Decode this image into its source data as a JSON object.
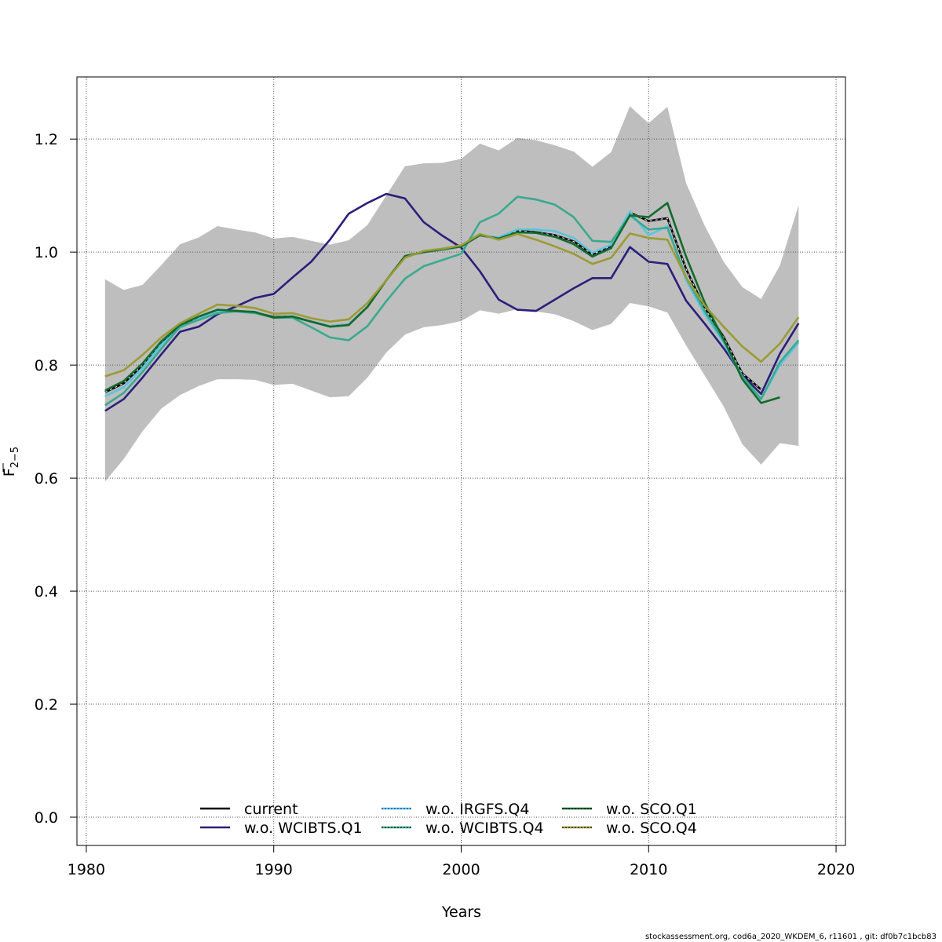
{
  "chart_data": {
    "type": "line",
    "xlabel": "Years",
    "ylabel": "F",
    "ylabel_subscript": "2−5",
    "xlim": [
      1979.5,
      2020.5
    ],
    "ylim": [
      -0.05,
      1.31
    ],
    "xticks": [
      1980,
      1990,
      2000,
      2010,
      2020
    ],
    "yticks": [
      0.0,
      0.2,
      0.4,
      0.6,
      0.8,
      1.0,
      1.2
    ],
    "grid": true,
    "legend_position": "bottom-center",
    "x": [
      1981,
      1982,
      1983,
      1984,
      1985,
      1986,
      1987,
      1988,
      1989,
      1990,
      1991,
      1992,
      1993,
      1994,
      1995,
      1996,
      1997,
      1998,
      1999,
      2000,
      2001,
      2002,
      2003,
      2004,
      2005,
      2006,
      2007,
      2008,
      2009,
      2010,
      2011,
      2012,
      2013,
      2014,
      2015,
      2016,
      2017,
      2018
    ],
    "band": {
      "color": "#bebebe",
      "upper": [
        0.952,
        0.933,
        0.942,
        0.977,
        1.014,
        1.026,
        1.046,
        1.04,
        1.035,
        1.024,
        1.027,
        1.02,
        1.013,
        1.021,
        1.048,
        1.1,
        1.152,
        1.157,
        1.158,
        1.165,
        1.192,
        1.18,
        1.202,
        1.198,
        1.189,
        1.178,
        1.151,
        1.177,
        1.258,
        1.228,
        1.257,
        1.122,
        1.046,
        0.983,
        0.938,
        0.917,
        0.976,
        1.083
      ],
      "lower": [
        0.594,
        0.634,
        0.683,
        0.723,
        0.747,
        0.763,
        0.775,
        0.775,
        0.774,
        0.765,
        0.767,
        0.755,
        0.743,
        0.745,
        0.778,
        0.822,
        0.854,
        0.867,
        0.871,
        0.878,
        0.897,
        0.891,
        0.899,
        0.895,
        0.89,
        0.878,
        0.862,
        0.873,
        0.91,
        0.904,
        0.893,
        0.835,
        0.781,
        0.727,
        0.66,
        0.624,
        0.662,
        0.657
      ]
    },
    "series": [
      {
        "name": "current",
        "color": "#000000",
        "dash": "",
        "values": [
          0.752,
          0.768,
          0.8,
          0.84,
          0.87,
          0.884,
          0.897,
          0.896,
          0.893,
          0.885,
          0.886,
          0.877,
          0.869,
          0.872,
          0.903,
          0.95,
          0.992,
          1.0,
          1.004,
          1.01,
          1.03,
          1.024,
          1.038,
          1.035,
          1.03,
          1.019,
          0.996,
          1.011,
          1.07,
          1.055,
          1.06,
          0.97,
          0.9,
          0.85,
          0.785,
          0.757,
          null,
          null
        ]
      },
      {
        "name": "w.o. WCIBTS.Q1",
        "color": "#2b1f7a",
        "dash": "",
        "values": [
          0.719,
          0.74,
          0.778,
          0.819,
          0.859,
          0.868,
          0.89,
          0.904,
          0.919,
          0.926,
          0.955,
          0.983,
          1.022,
          1.068,
          1.087,
          1.103,
          1.095,
          1.053,
          1.029,
          1.008,
          0.966,
          0.916,
          0.898,
          0.896,
          0.916,
          0.936,
          0.954,
          0.954,
          1.009,
          0.983,
          0.979,
          0.914,
          0.873,
          0.83,
          0.782,
          0.749,
          0.82,
          0.874
        ]
      },
      {
        "name": "w.o. IRGFS.Q4",
        "color": "#5bc4e0",
        "dash": "",
        "values": [
          0.745,
          0.761,
          0.795,
          0.836,
          0.866,
          0.882,
          0.896,
          0.896,
          0.893,
          0.884,
          0.886,
          0.877,
          0.869,
          0.872,
          0.903,
          0.95,
          0.992,
          1.0,
          1.004,
          1.01,
          1.03,
          1.026,
          1.04,
          1.04,
          1.037,
          1.025,
          0.999,
          1.013,
          1.072,
          1.03,
          1.046,
          0.95,
          0.89,
          0.84,
          0.778,
          0.74,
          0.8,
          0.84
        ]
      },
      {
        "name": "w.o. WCIBTS.Q4",
        "color": "#3aa98f",
        "dash": "",
        "values": [
          0.729,
          0.751,
          0.788,
          0.829,
          0.868,
          0.88,
          0.892,
          0.895,
          0.892,
          0.884,
          0.884,
          0.867,
          0.849,
          0.844,
          0.869,
          0.913,
          0.953,
          0.975,
          0.986,
          0.997,
          1.053,
          1.068,
          1.098,
          1.093,
          1.084,
          1.062,
          1.02,
          1.018,
          1.065,
          1.04,
          1.043,
          0.955,
          0.895,
          0.843,
          0.78,
          0.74,
          0.805,
          0.844
        ]
      },
      {
        "name": "w.o. SCO.Q1",
        "color": "#116b2c",
        "dash": "",
        "values": [
          0.755,
          0.772,
          0.803,
          0.842,
          0.871,
          0.886,
          0.898,
          0.896,
          0.894,
          0.884,
          0.886,
          0.877,
          0.868,
          0.871,
          0.903,
          0.95,
          0.993,
          1.0,
          1.005,
          1.01,
          1.03,
          1.024,
          1.035,
          1.034,
          1.027,
          1.014,
          0.992,
          1.007,
          1.065,
          1.062,
          1.087,
          0.992,
          0.91,
          0.846,
          0.775,
          0.733,
          0.743,
          null
        ]
      },
      {
        "name": "w.o. SCO.Q4",
        "color": "#9b9b35",
        "dash": "",
        "values": [
          0.78,
          0.791,
          0.818,
          0.849,
          0.874,
          0.891,
          0.907,
          0.905,
          0.901,
          0.891,
          0.892,
          0.883,
          0.877,
          0.881,
          0.91,
          0.95,
          0.99,
          1.002,
          1.006,
          1.012,
          1.032,
          1.022,
          1.032,
          1.022,
          1.01,
          0.997,
          0.979,
          0.99,
          1.033,
          1.025,
          1.022,
          0.955,
          0.905,
          0.868,
          0.833,
          0.806,
          0.838,
          0.885
        ]
      }
    ],
    "footer": "stockassessment.org, cod6a_2020_WKDEM_6, r11601 , git: df0b7c1bcb83"
  }
}
